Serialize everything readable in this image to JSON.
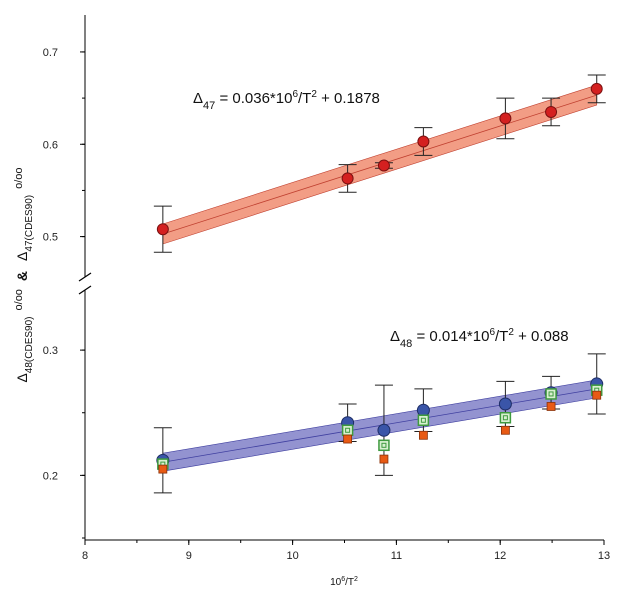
{
  "chart_data": {
    "type": "scatter",
    "title": "",
    "xlabel": {
      "base": "10",
      "sup": "6",
      "rest": "/T",
      "sup2": "2"
    },
    "ylabel": {
      "upper": {
        "delta": "Δ",
        "sub": "47(CDES90)",
        "unit": "o/oo"
      },
      "amp": "&",
      "lower": {
        "delta": "Δ",
        "sub": "48(CDES90)",
        "unit": "o/oo"
      }
    },
    "xlim": [
      8,
      13
    ],
    "x_ticks": [
      "8",
      "9",
      "10",
      "11",
      "12",
      "13"
    ],
    "upper_panel": {
      "ylim": [
        0.44,
        0.74
      ],
      "y_ticks": [
        "0.5",
        "0.6",
        "0.7"
      ],
      "equation": {
        "delta": "Δ",
        "sub": "47",
        "text": " = 0.036*10",
        "sup": "6",
        "text2": "/T",
        "sup2": "2",
        "text3": " + 0.1878"
      },
      "fit": {
        "slope": 0.036,
        "intercept": 0.1878,
        "x_range": [
          8.75,
          12.93
        ],
        "band_color": "#f08c70",
        "line_color": "#c04030"
      },
      "series": [
        {
          "color": "#d42020",
          "points": [
            {
              "x": 8.75,
              "y": 0.508,
              "err": 0.025
            },
            {
              "x": 10.53,
              "y": 0.563,
              "err": 0.015
            },
            {
              "x": 10.88,
              "y": 0.577,
              "err": 0.003
            },
            {
              "x": 11.26,
              "y": 0.603,
              "err": 0.015
            },
            {
              "x": 12.05,
              "y": 0.628,
              "err": 0.022
            },
            {
              "x": 12.49,
              "y": 0.635,
              "err": 0.015
            },
            {
              "x": 12.93,
              "y": 0.66,
              "err": 0.015
            }
          ]
        }
      ]
    },
    "lower_panel": {
      "ylim": [
        0.15,
        0.34
      ],
      "y_ticks": [
        "0.2",
        "0.3"
      ],
      "equation": {
        "delta": "Δ",
        "sub": "48",
        "text": " = 0.014*10",
        "sup": "6",
        "text2": "/T",
        "sup2": "2",
        "text3": " + 0.088"
      },
      "fit": {
        "slope": 0.014,
        "intercept": 0.088,
        "x_range": [
          8.75,
          12.93
        ],
        "band_color": "#8080c8",
        "line_color": "#4040a0"
      },
      "series": [
        {
          "marker": "circle",
          "color": "#3a55a8",
          "points": [
            {
              "x": 8.75,
              "y": 0.212,
              "err": 0.026
            },
            {
              "x": 10.53,
              "y": 0.242,
              "err": 0.015
            },
            {
              "x": 10.88,
              "y": 0.236,
              "err": 0.036
            },
            {
              "x": 11.26,
              "y": 0.252,
              "err": 0.017
            },
            {
              "x": 12.05,
              "y": 0.257,
              "err": 0.018
            },
            {
              "x": 12.49,
              "y": 0.266,
              "err": 0.013
            },
            {
              "x": 12.93,
              "y": 0.273,
              "err": 0.024
            }
          ]
        },
        {
          "marker": "square-open",
          "color": "#3f9a3f",
          "points": [
            {
              "x": 8.75,
              "y": 0.209
            },
            {
              "x": 10.53,
              "y": 0.236
            },
            {
              "x": 10.88,
              "y": 0.224
            },
            {
              "x": 11.26,
              "y": 0.244
            },
            {
              "x": 12.05,
              "y": 0.246
            },
            {
              "x": 12.49,
              "y": 0.265
            },
            {
              "x": 12.93,
              "y": 0.268
            }
          ]
        },
        {
          "marker": "square",
          "color": "#e85a14",
          "points": [
            {
              "x": 8.75,
              "y": 0.205
            },
            {
              "x": 10.53,
              "y": 0.229
            },
            {
              "x": 10.88,
              "y": 0.213
            },
            {
              "x": 11.26,
              "y": 0.232
            },
            {
              "x": 12.05,
              "y": 0.236
            },
            {
              "x": 12.49,
              "y": 0.255
            },
            {
              "x": 12.93,
              "y": 0.264
            }
          ]
        }
      ]
    }
  }
}
